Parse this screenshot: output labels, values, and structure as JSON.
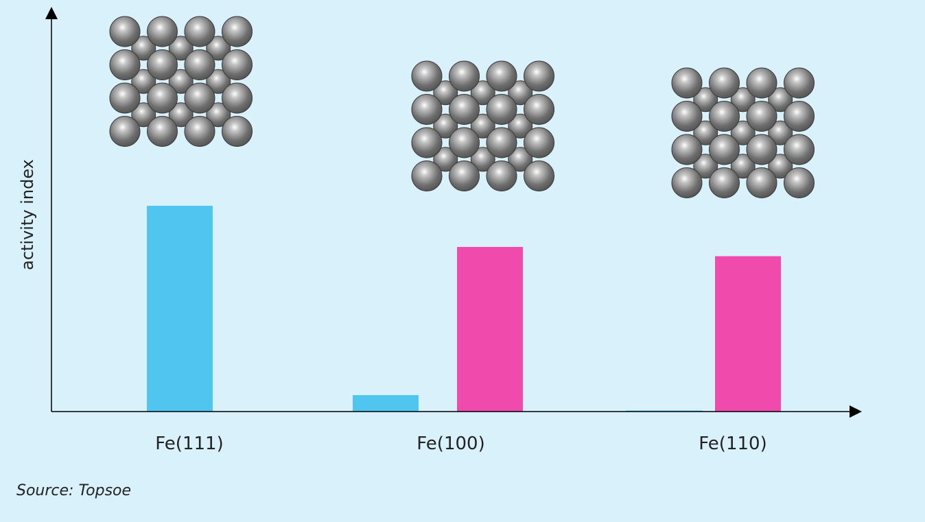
{
  "chart_data": {
    "type": "bar",
    "title": "",
    "xlabel": "",
    "ylabel": "activity index",
    "categories": [
      "Fe(111)",
      "Fe(100)",
      "Fe(110)"
    ],
    "series": [
      {
        "values": [
          100,
          8,
          0.5
        ],
        "color": "#4fc5f0"
      },
      {
        "values": [
          0,
          80,
          75.5
        ],
        "color": "#f04aad"
      }
    ],
    "ylim": [
      0,
      140
    ],
    "grid": false,
    "legend": "none",
    "inset_images": [
      "atom-lattice-icon",
      "atom-lattice-icon",
      "atom-lattice-icon"
    ]
  },
  "footer": {
    "source": "Source: Topsoe"
  },
  "colors": {
    "background": "#d9f1fa",
    "axis": "#000000",
    "atom_fill": "#7a7a7a",
    "atom_stroke": "#3a3a3a"
  }
}
